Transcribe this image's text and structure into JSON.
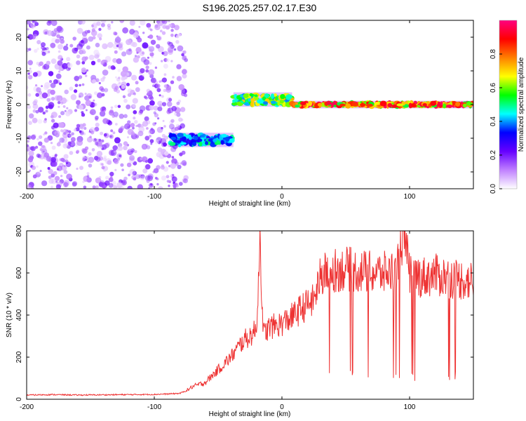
{
  "title": "S196.2025.257.02.17.E30",
  "chart_data": [
    {
      "type": "heatmap",
      "xlabel": "Height of straight line (km)",
      "ylabel": "Frequency (Hz)",
      "xlim": [
        -200,
        150
      ],
      "ylim": [
        -25,
        25
      ],
      "x_ticks": [
        "-200",
        "-100",
        "0",
        "100"
      ],
      "y_ticks": [
        "-20",
        "-10",
        "0",
        "10",
        "20"
      ],
      "colorbar": {
        "label": "Normalized spectral amplitude",
        "range": [
          0,
          1
        ],
        "ticks": [
          "0.0",
          "0.2",
          "0.4",
          "0.6",
          "0.8"
        ],
        "colors": [
          "#ffffff",
          "#c080ff",
          "#6600ff",
          "#0000ff",
          "#00ffff",
          "#00ff00",
          "#ffff00",
          "#ff8000",
          "#ff0000",
          "#ff0080"
        ]
      },
      "features": [
        {
          "x_range": [
            -200,
            -75
          ],
          "y_range": [
            -25,
            25
          ],
          "level": 0.12
        },
        {
          "x_range": [
            -88,
            -38
          ],
          "y_range": [
            -12,
            -9
          ],
          "level": 0.5
        },
        {
          "x_range": [
            -38,
            8
          ],
          "y_range": [
            0,
            3
          ],
          "level": 0.7
        },
        {
          "x_range": [
            8,
            150
          ],
          "y_range": [
            -0.5,
            0.5
          ],
          "level": 0.95
        }
      ]
    },
    {
      "type": "line",
      "xlabel": "Height of straight line (km)",
      "ylabel": "SNR (10 * v/v)",
      "xlim": [
        -200,
        150
      ],
      "ylim": [
        0,
        800
      ],
      "x_ticks": [
        "-200",
        "-100",
        "0",
        "100"
      ],
      "y_ticks": [
        "0",
        "200",
        "400",
        "600",
        "800"
      ],
      "color": "#ee3333",
      "series": [
        {
          "x": [
            -200,
            -180,
            -160,
            -140,
            -120,
            -100,
            -90,
            -80,
            -75,
            -70,
            -65,
            -60,
            -55,
            -50,
            -45,
            -40,
            -35,
            -30,
            -25,
            -20,
            -17,
            -15,
            -10,
            -5,
            0,
            5,
            10,
            15,
            20,
            25,
            30,
            35,
            40,
            50,
            60,
            70,
            80,
            90,
            95,
            100,
            110,
            120,
            130,
            140,
            150
          ],
          "y": [
            20,
            22,
            20,
            21,
            22,
            23,
            25,
            28,
            40,
            60,
            70,
            80,
            110,
            140,
            170,
            200,
            240,
            280,
            300,
            330,
            790,
            310,
            340,
            350,
            360,
            380,
            400,
            430,
            450,
            470,
            580,
            600,
            610,
            620,
            610,
            600,
            600,
            610,
            800,
            600,
            580,
            590,
            580,
            570,
            560
          ]
        }
      ]
    }
  ]
}
